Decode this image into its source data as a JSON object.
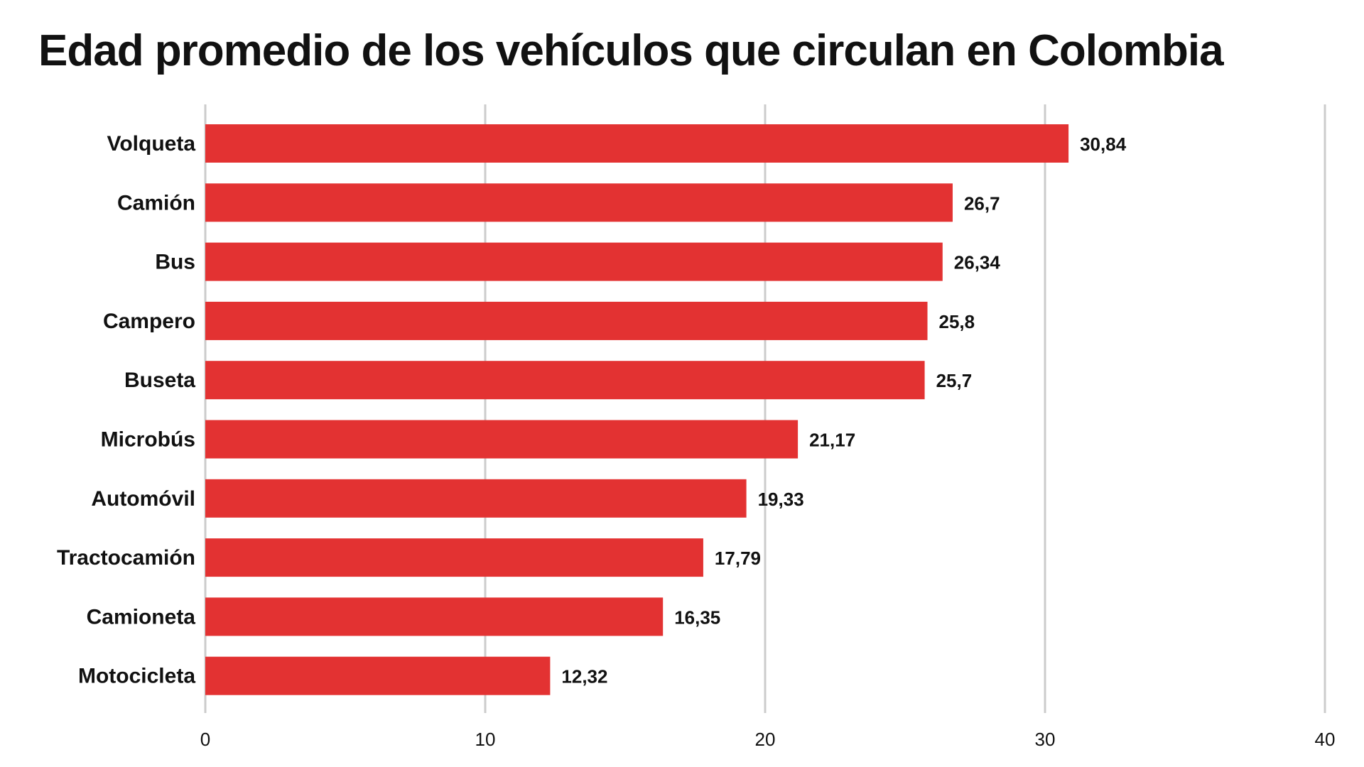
{
  "chart_data": {
    "type": "bar",
    "orientation": "horizontal",
    "title": "Edad promedio de los vehículos que circulan en Colombia",
    "categories": [
      "Volqueta",
      "Camión",
      "Bus",
      "Campero",
      "Buseta",
      "Microbús",
      "Automóvil",
      "Tractocamión",
      "Camioneta",
      "Motocicleta"
    ],
    "values": [
      30.84,
      26.7,
      26.34,
      25.8,
      25.7,
      21.17,
      19.33,
      17.79,
      16.35,
      12.32
    ],
    "value_labels": [
      "30,84",
      "26,7",
      "26,34",
      "25,8",
      "25,7",
      "21,17",
      "19,33",
      "17,79",
      "16,35",
      "12,32"
    ],
    "xlim": [
      0,
      40
    ],
    "x_ticks": [
      "0",
      "10",
      "20",
      "30",
      "40"
    ],
    "grid": true,
    "bar_color": "#e33232",
    "grid_color": "#cccccc"
  }
}
